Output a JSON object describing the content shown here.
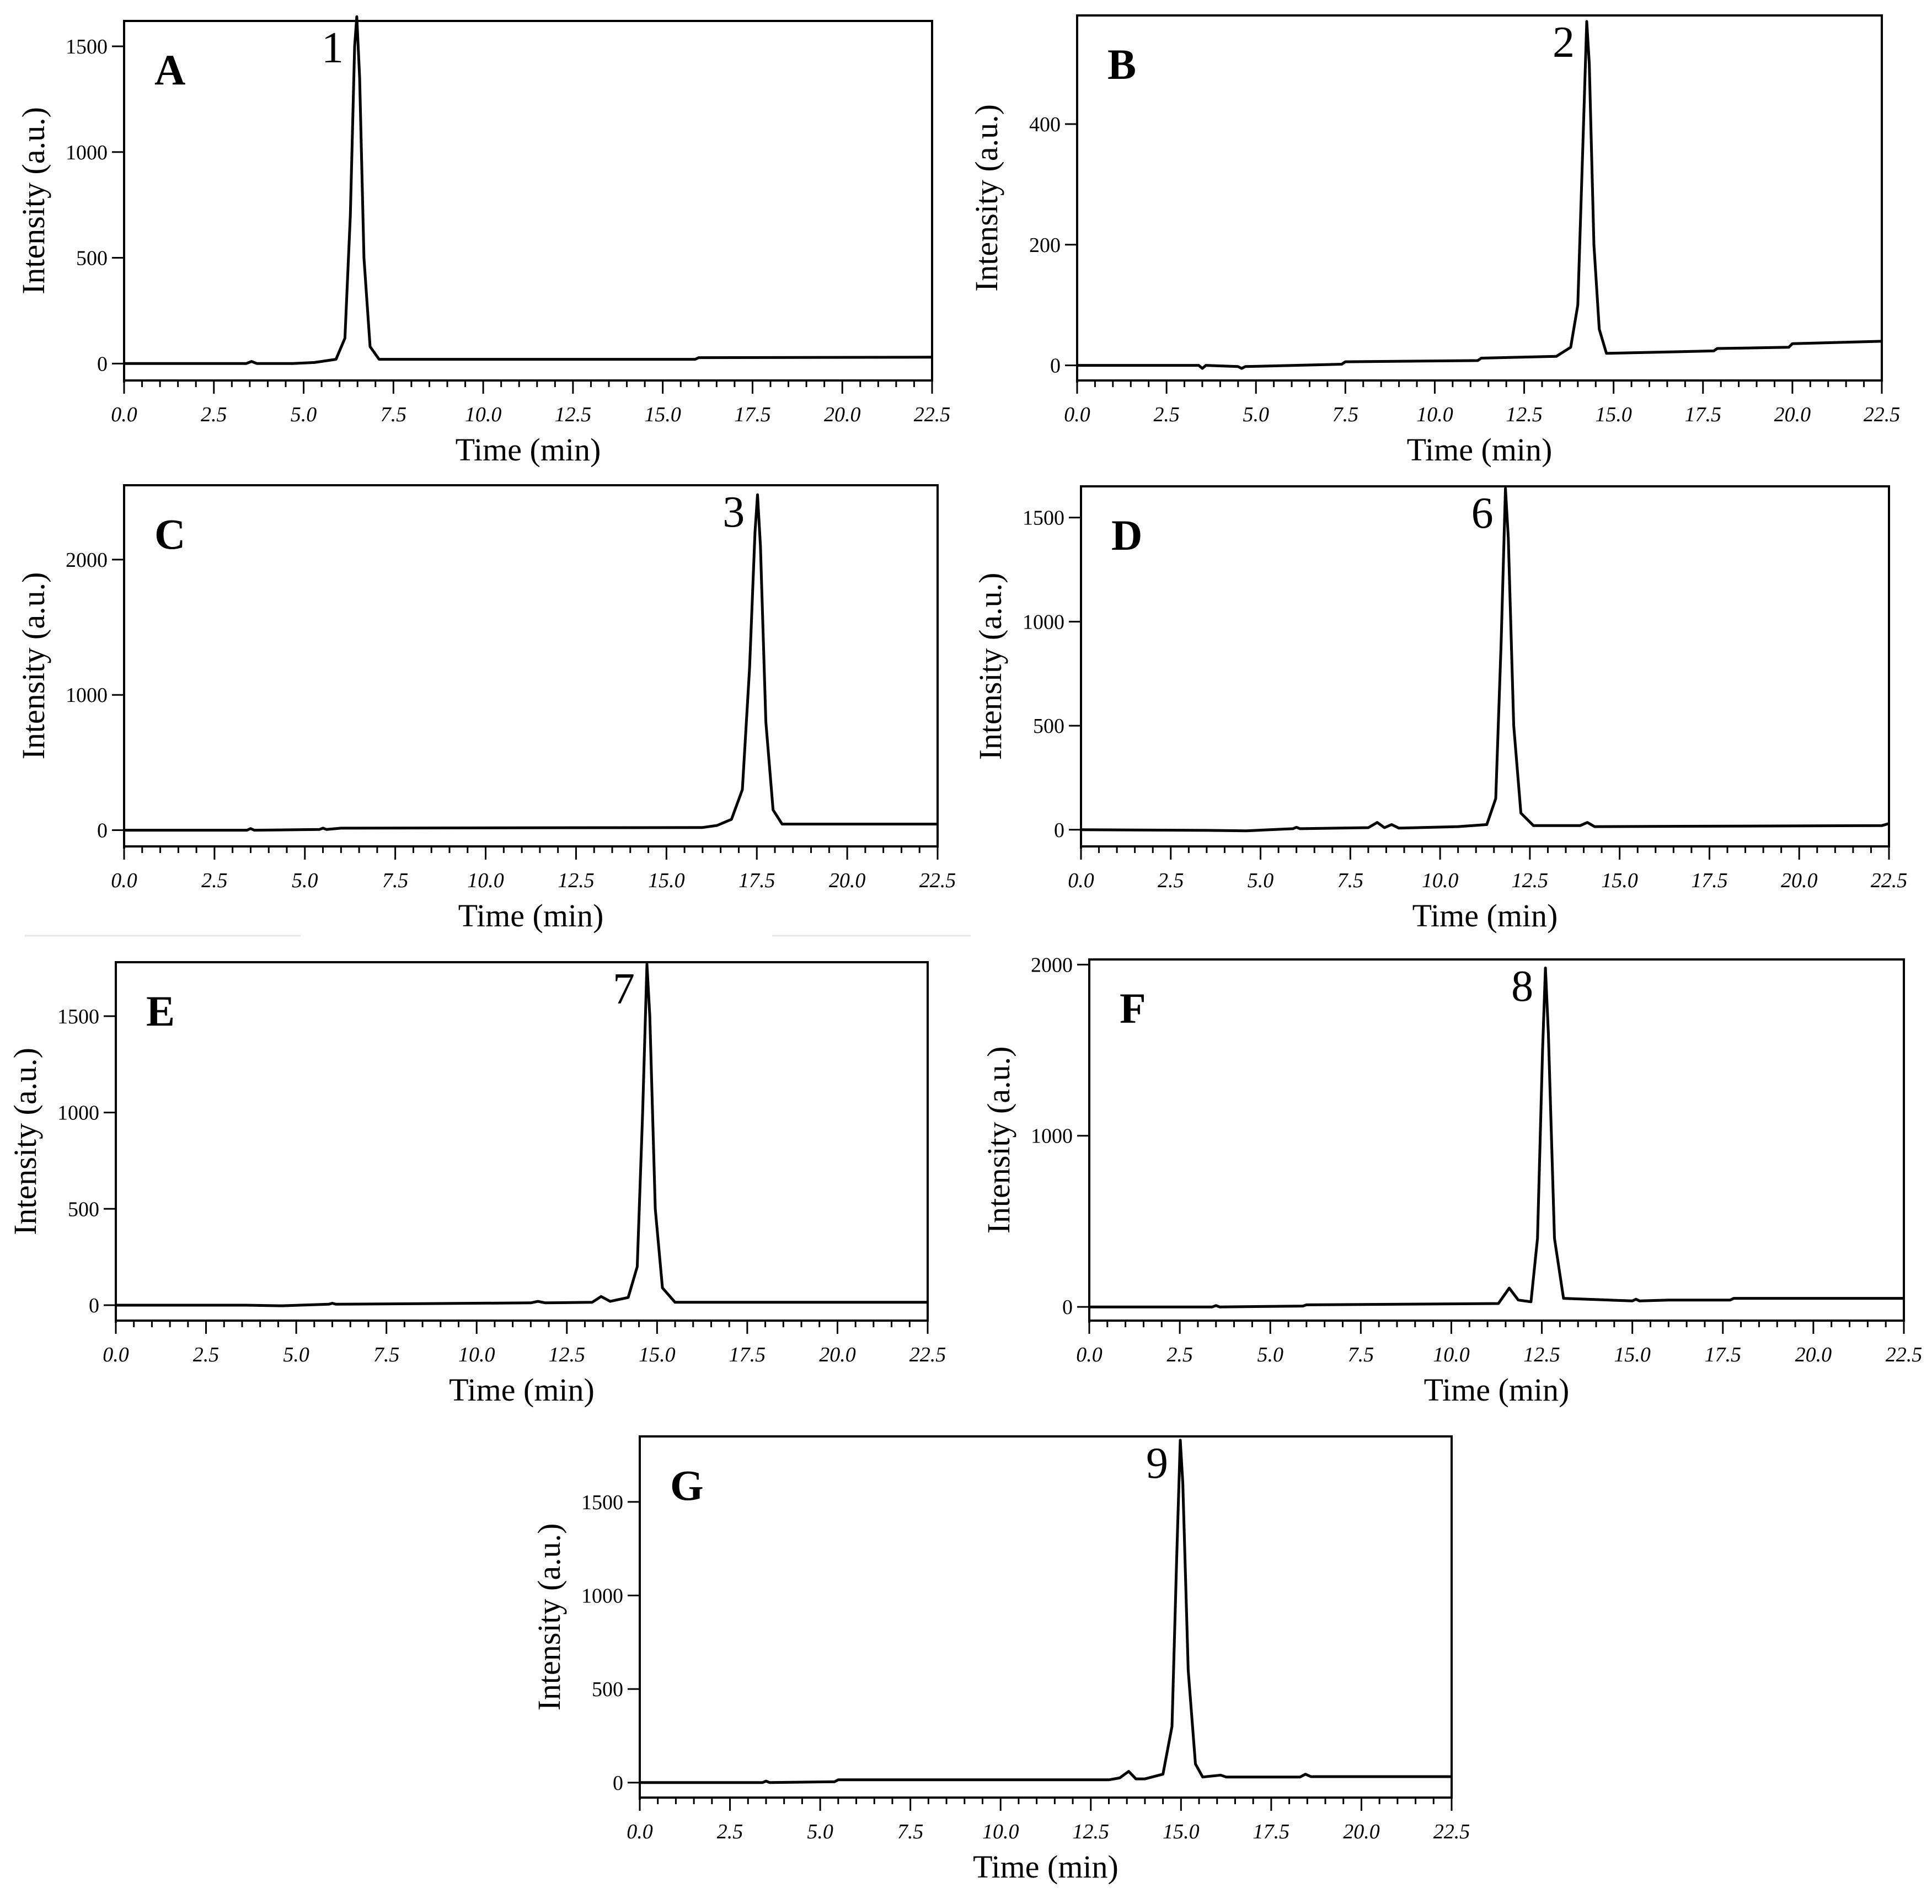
{
  "chart_data": [
    {
      "type": "line",
      "panel": "A",
      "xlabel": "Time (min)",
      "ylabel": "Intensity (a.u.)",
      "xlim": [
        0,
        22.5
      ],
      "ylim": [
        -80,
        1620
      ],
      "xticks": [
        "0.0",
        "2.5",
        "5.0",
        "7.5",
        "10.0",
        "12.5",
        "15.0",
        "17.5",
        "20.0",
        "22.5"
      ],
      "yticks": [
        0,
        500,
        1000,
        1500
      ],
      "series": [
        {
          "values": [
            [
              0,
              0
            ],
            [
              3.4,
              0
            ],
            [
              3.55,
              10
            ],
            [
              3.7,
              0
            ],
            [
              4.7,
              0
            ],
            [
              5.3,
              5
            ],
            [
              5.9,
              20
            ],
            [
              6.15,
              120
            ],
            [
              6.3,
              700
            ],
            [
              6.42,
              1500
            ],
            [
              6.48,
              1640
            ],
            [
              6.56,
              1350
            ],
            [
              6.68,
              500
            ],
            [
              6.85,
              80
            ],
            [
              7.1,
              20
            ],
            [
              9,
              20
            ],
            [
              12,
              20
            ],
            [
              15.9,
              20
            ],
            [
              16,
              28
            ],
            [
              22.5,
              30
            ]
          ]
        }
      ],
      "peaks": [
        {
          "label": "1",
          "time": 6.45
        }
      ]
    },
    {
      "type": "line",
      "panel": "B",
      "xlabel": "Time (min)",
      "ylabel": "Intensity (a.u.)",
      "xlim": [
        0,
        22.5
      ],
      "ylim": [
        -25,
        580
      ],
      "xticks": [
        "0.0",
        "2.5",
        "5.0",
        "7.5",
        "10.0",
        "12.5",
        "15.0",
        "17.5",
        "20.0",
        "22.5"
      ],
      "yticks": [
        0,
        200,
        400
      ],
      "series": [
        {
          "values": [
            [
              0,
              0
            ],
            [
              3.4,
              0
            ],
            [
              3.5,
              -5
            ],
            [
              3.6,
              0
            ],
            [
              4.5,
              -2
            ],
            [
              4.6,
              -5
            ],
            [
              4.7,
              -2
            ],
            [
              7.4,
              2
            ],
            [
              7.5,
              6
            ],
            [
              11.2,
              8
            ],
            [
              11.3,
              12
            ],
            [
              13.4,
              15
            ],
            [
              13.8,
              30
            ],
            [
              14.0,
              100
            ],
            [
              14.15,
              380
            ],
            [
              14.25,
              570
            ],
            [
              14.32,
              500
            ],
            [
              14.45,
              200
            ],
            [
              14.6,
              60
            ],
            [
              14.8,
              20
            ],
            [
              17.8,
              24
            ],
            [
              17.9,
              28
            ],
            [
              19.9,
              30
            ],
            [
              20,
              36
            ],
            [
              22.5,
              40
            ]
          ]
        }
      ],
      "peaks": [
        {
          "label": "2",
          "time": 14.25
        }
      ]
    },
    {
      "type": "line",
      "panel": "C",
      "xlabel": "Time (min)",
      "ylabel": "Intensity (a.u.)",
      "xlim": [
        0,
        22.5
      ],
      "ylim": [
        -120,
        2550
      ],
      "xticks": [
        "0.0",
        "2.5",
        "5.0",
        "7.5",
        "10.0",
        "12.5",
        "15.0",
        "17.5",
        "20.0",
        "22.5"
      ],
      "yticks": [
        0,
        1000,
        2000
      ],
      "series": [
        {
          "values": [
            [
              0,
              0
            ],
            [
              3.4,
              0
            ],
            [
              3.5,
              12
            ],
            [
              3.6,
              0
            ],
            [
              5.4,
              5
            ],
            [
              5.5,
              15
            ],
            [
              5.6,
              5
            ],
            [
              6,
              15
            ],
            [
              16,
              20
            ],
            [
              16.4,
              35
            ],
            [
              16.8,
              80
            ],
            [
              17.1,
              300
            ],
            [
              17.3,
              1200
            ],
            [
              17.45,
              2200
            ],
            [
              17.52,
              2480
            ],
            [
              17.6,
              2100
            ],
            [
              17.75,
              800
            ],
            [
              17.95,
              150
            ],
            [
              18.2,
              45
            ],
            [
              22.5,
              45
            ]
          ]
        }
      ],
      "peaks": [
        {
          "label": "3",
          "time": 17.5
        }
      ]
    },
    {
      "type": "line",
      "panel": "D",
      "xlabel": "Time (min)",
      "ylabel": "Intensity (a.u.)",
      "xlim": [
        0,
        22.5
      ],
      "ylim": [
        -80,
        1650
      ],
      "xticks": [
        "0.0",
        "2.5",
        "5.0",
        "7.5",
        "10.0",
        "12.5",
        "15.0",
        "17.5",
        "20.0",
        "22.5"
      ],
      "yticks": [
        0,
        500,
        1000,
        1500
      ],
      "series": [
        {
          "values": [
            [
              0,
              0
            ],
            [
              3.5,
              -3
            ],
            [
              4.6,
              -5
            ],
            [
              5.9,
              5
            ],
            [
              6.0,
              12
            ],
            [
              6.1,
              5
            ],
            [
              8.0,
              10
            ],
            [
              8.25,
              35
            ],
            [
              8.45,
              10
            ],
            [
              8.65,
              25
            ],
            [
              8.85,
              8
            ],
            [
              10.5,
              15
            ],
            [
              11.3,
              25
            ],
            [
              11.55,
              150
            ],
            [
              11.7,
              900
            ],
            [
              11.82,
              1640
            ],
            [
              11.9,
              1400
            ],
            [
              12.05,
              500
            ],
            [
              12.25,
              80
            ],
            [
              12.6,
              20
            ],
            [
              13.9,
              20
            ],
            [
              14.1,
              35
            ],
            [
              14.3,
              15
            ],
            [
              22.3,
              20
            ],
            [
              22.5,
              30
            ]
          ]
        }
      ],
      "peaks": [
        {
          "label": "6",
          "time": 11.82
        }
      ]
    },
    {
      "type": "line",
      "panel": "E",
      "xlabel": "Time (min)",
      "ylabel": "Intensity (a.u.)",
      "xlim": [
        0,
        22.5
      ],
      "ylim": [
        -80,
        1780
      ],
      "xticks": [
        "0.0",
        "2.5",
        "5.0",
        "7.5",
        "10.0",
        "12.5",
        "15.0",
        "17.5",
        "20.0",
        "22.5"
      ],
      "yticks": [
        0,
        500,
        1000,
        1500
      ],
      "series": [
        {
          "values": [
            [
              0,
              0
            ],
            [
              3.6,
              0
            ],
            [
              4.6,
              -3
            ],
            [
              5.9,
              5
            ],
            [
              6.0,
              10
            ],
            [
              6.1,
              5
            ],
            [
              11.5,
              12
            ],
            [
              11.7,
              20
            ],
            [
              11.9,
              12
            ],
            [
              13.2,
              15
            ],
            [
              13.45,
              45
            ],
            [
              13.7,
              20
            ],
            [
              14.2,
              40
            ],
            [
              14.45,
              200
            ],
            [
              14.6,
              1000
            ],
            [
              14.72,
              1770
            ],
            [
              14.8,
              1500
            ],
            [
              14.95,
              500
            ],
            [
              15.15,
              90
            ],
            [
              15.5,
              15
            ],
            [
              22.5,
              15
            ]
          ]
        }
      ],
      "peaks": [
        {
          "label": "7",
          "time": 14.72
        }
      ]
    },
    {
      "type": "line",
      "panel": "F",
      "xlabel": "Time (min)",
      "ylabel": "Intensity (a.u.)",
      "xlim": [
        0,
        22.5
      ],
      "ylim": [
        -80,
        2030
      ],
      "xticks": [
        "0.0",
        "2.5",
        "5.0",
        "7.5",
        "10.0",
        "12.5",
        "15.0",
        "17.5",
        "20.0",
        "22.5"
      ],
      "yticks": [
        0,
        1000,
        2000
      ],
      "series": [
        {
          "values": [
            [
              0,
              0
            ],
            [
              3.4,
              0
            ],
            [
              3.5,
              8
            ],
            [
              3.6,
              0
            ],
            [
              5.9,
              5
            ],
            [
              6.0,
              12
            ],
            [
              11.3,
              20
            ],
            [
              11.6,
              110
            ],
            [
              11.85,
              40
            ],
            [
              12.2,
              30
            ],
            [
              12.38,
              400
            ],
            [
              12.52,
              1500
            ],
            [
              12.6,
              1980
            ],
            [
              12.68,
              1600
            ],
            [
              12.85,
              400
            ],
            [
              13.1,
              50
            ],
            [
              15.0,
              35
            ],
            [
              15.1,
              45
            ],
            [
              15.2,
              35
            ],
            [
              16,
              40
            ],
            [
              17.7,
              40
            ],
            [
              17.8,
              50
            ],
            [
              22.5,
              50
            ]
          ]
        }
      ],
      "peaks": [
        {
          "label": "8",
          "time": 12.6
        }
      ]
    },
    {
      "type": "line",
      "panel": "G",
      "xlabel": "Time (min)",
      "ylabel": "Intensity (a.u.)",
      "xlim": [
        0,
        22.5
      ],
      "ylim": [
        -80,
        1850
      ],
      "xticks": [
        "0.0",
        "2.5",
        "5.0",
        "7.5",
        "10.0",
        "12.5",
        "15.0",
        "17.5",
        "20.0",
        "22.5"
      ],
      "yticks": [
        0,
        500,
        1000,
        1500
      ],
      "series": [
        {
          "values": [
            [
              0,
              0
            ],
            [
              3.4,
              0
            ],
            [
              3.5,
              8
            ],
            [
              3.6,
              0
            ],
            [
              5.4,
              5
            ],
            [
              5.5,
              15
            ],
            [
              13,
              15
            ],
            [
              13.3,
              25
            ],
            [
              13.55,
              60
            ],
            [
              13.75,
              20
            ],
            [
              14.0,
              20
            ],
            [
              14.5,
              45
            ],
            [
              14.75,
              300
            ],
            [
              14.88,
              1200
            ],
            [
              14.98,
              1830
            ],
            [
              15.05,
              1600
            ],
            [
              15.2,
              600
            ],
            [
              15.4,
              100
            ],
            [
              15.6,
              30
            ],
            [
              16.1,
              40
            ],
            [
              16.25,
              30
            ],
            [
              18.3,
              30
            ],
            [
              18.45,
              45
            ],
            [
              18.6,
              32
            ],
            [
              22.5,
              32
            ]
          ]
        }
      ],
      "peaks": [
        {
          "label": "9",
          "time": 14.98
        }
      ]
    }
  ]
}
